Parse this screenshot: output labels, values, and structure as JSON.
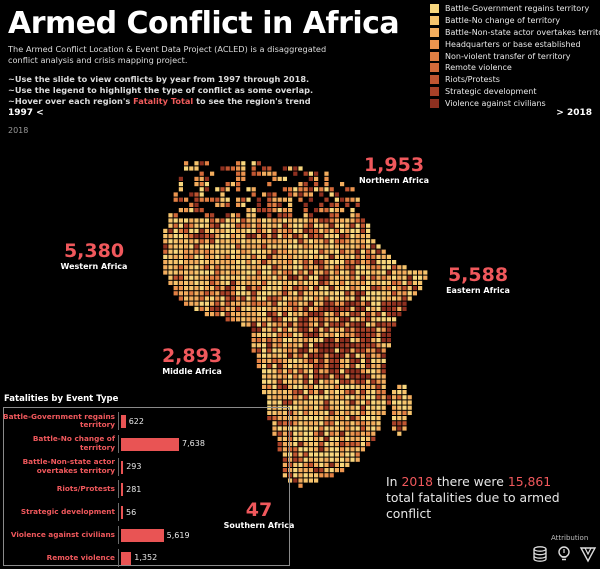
{
  "header": {
    "title": "Armed Conflict in Africa",
    "description": "The Armed Conflict Location & Event Data Project (ACLED) is a disaggregated conflict analysis and crisis mapping project.",
    "hint1": "~Use the slide to view conflicts by year from 1997 through 2018.",
    "hint2": "~Use the legend to highlight the type of conflict as some overlap.",
    "hint3_prefix": "~Hover over each  region's ",
    "hint3_accent": "Fatality Total",
    "hint3_suffix": " to see the region's trend"
  },
  "slider": {
    "min_label": "1997 <",
    "max_label": "> 2018",
    "current_label": "2018"
  },
  "legend": [
    {
      "label": "Battle-Government regains territory",
      "color": "#f8d77e"
    },
    {
      "label": "Battle-No change of territory",
      "color": "#f6c46d"
    },
    {
      "label": "Battle-Non-state actor overtakes territory",
      "color": "#f2ad5e"
    },
    {
      "label": "Headquarters or base established",
      "color": "#ec954f"
    },
    {
      "label": "Non-violent transfer of territory",
      "color": "#e17f43"
    },
    {
      "label": "Remote violence",
      "color": "#d36a39"
    },
    {
      "label": "Riots/Protests",
      "color": "#c05531"
    },
    {
      "label": "Strategic development",
      "color": "#a84128"
    },
    {
      "label": "Violence against civilians",
      "color": "#8e3020"
    }
  ],
  "regions": {
    "northern": {
      "total": "1,953",
      "name": "Northern Africa"
    },
    "western": {
      "total": "5,380",
      "name": "Western Africa"
    },
    "eastern": {
      "total": "5,588",
      "name": "Eastern Africa"
    },
    "middle": {
      "total": "2,893",
      "name": "Middle Africa"
    },
    "southern": {
      "total": "47",
      "name": "Southern Africa"
    }
  },
  "fatalities_panel": {
    "title": "Fatalities by Event Type"
  },
  "chart_data": {
    "type": "bar",
    "title": "Fatalities by Event Type",
    "orientation": "horizontal",
    "categories": [
      "Battle-Government regains territory",
      "Battle-No change of territory",
      "Battle-Non-state actor overtakes territory",
      "Riots/Protests",
      "Strategic development",
      "Violence against civilians",
      "Remote violence"
    ],
    "values": [
      622,
      7638,
      293,
      281,
      56,
      5619,
      1352
    ],
    "value_labels": [
      "622",
      "7,638",
      "293",
      "281",
      "56",
      "5,619",
      "1,352"
    ],
    "xlim": [
      0,
      7638
    ],
    "grid": false,
    "bar_color": "#e95454"
  },
  "summary": {
    "prefix": "In ",
    "year": "2018",
    "middle": " there were ",
    "total": "15,861",
    "suffix": " total fatalities due to armed conflict"
  },
  "attribution": {
    "label": "Attribution",
    "icons": [
      "database-icon",
      "lightbulb-icon",
      "tableau-logo-icon"
    ]
  }
}
